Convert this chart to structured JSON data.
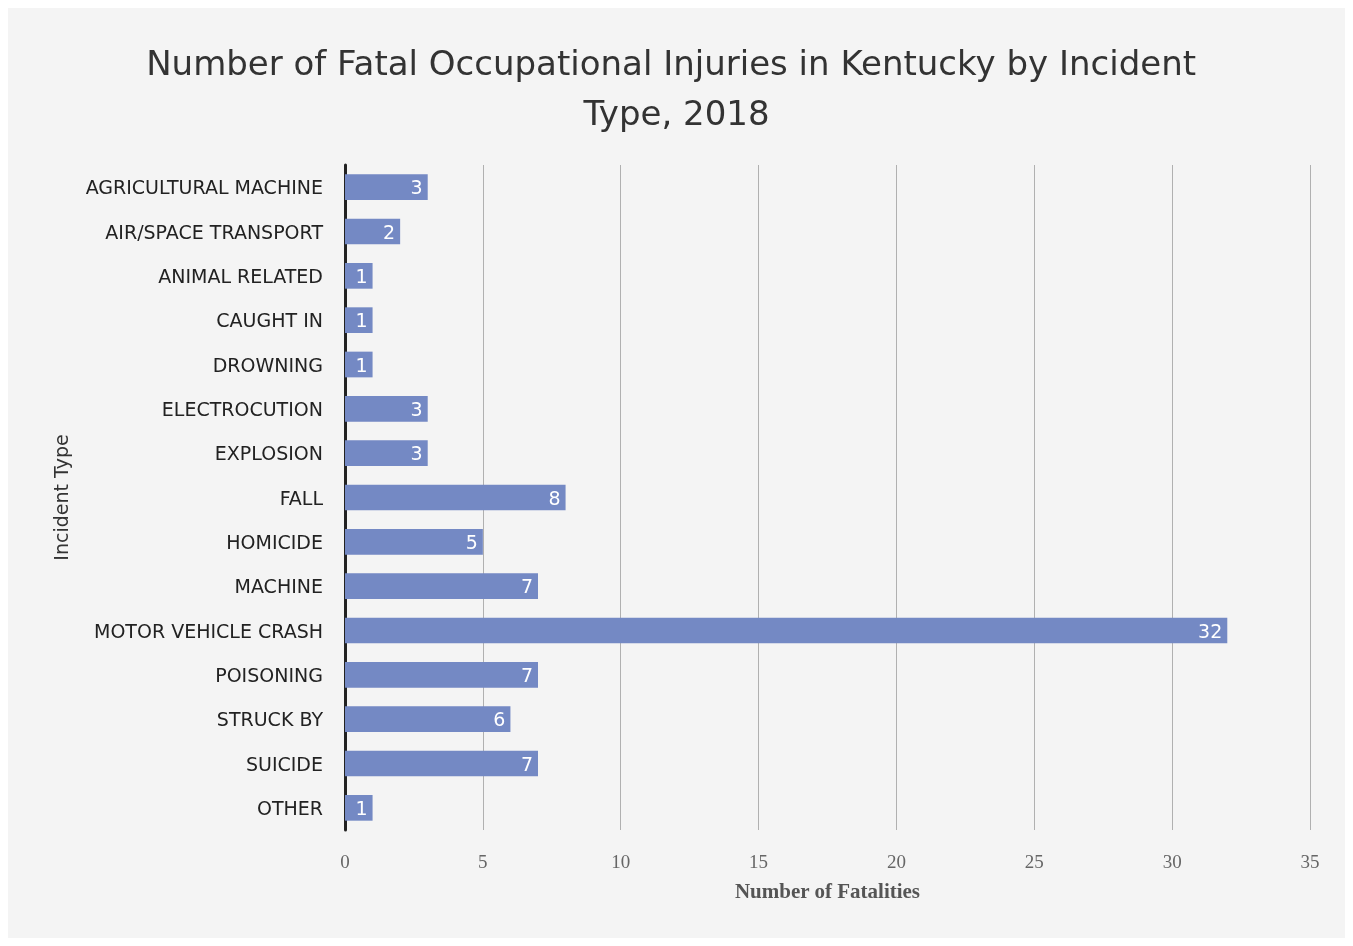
{
  "chart_data": {
    "type": "bar",
    "orientation": "horizontal",
    "title": "Number of Fatal Occupational Injuries in Kentucky by Incident Type, 2018",
    "xlabel": "Number of Fatalities",
    "ylabel": "Incident Type",
    "categories": [
      "AGRICULTURAL MACHINE",
      "AIR/SPACE TRANSPORT",
      "ANIMAL RELATED",
      "CAUGHT IN",
      "DROWNING",
      "ELECTROCUTION",
      "EXPLOSION",
      "FALL",
      "HOMICIDE",
      "MACHINE",
      "MOTOR VEHICLE CRASH",
      "POISONING",
      "STRUCK BY",
      "SUICIDE",
      "OTHER"
    ],
    "values": [
      3,
      2,
      1,
      1,
      1,
      3,
      3,
      8,
      5,
      7,
      32,
      7,
      6,
      7,
      1
    ],
    "color": "#7489c4",
    "xlim": [
      0,
      35
    ],
    "xticks": [
      0,
      5,
      10,
      15,
      20,
      25,
      30,
      35
    ],
    "grid": "x",
    "data_labels": true
  }
}
